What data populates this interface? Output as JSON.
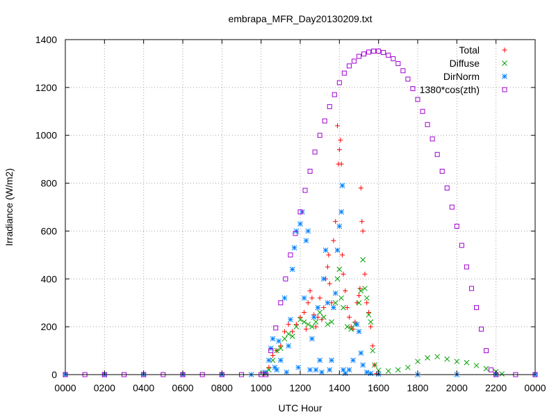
{
  "chart_data": {
    "type": "scatter",
    "title": "embrapa_MFR_Day20130209.txt",
    "xlabel": "UTC Hour",
    "ylabel": "Irradiance (W/m2)",
    "xlim": [
      0,
      24
    ],
    "ylim": [
      0,
      1400
    ],
    "x_ticks": [
      0,
      2,
      4,
      6,
      8,
      10,
      12,
      14,
      16,
      18,
      20,
      22,
      24
    ],
    "x_tick_labels": [
      "0000",
      "0200",
      "0400",
      "0600",
      "0800",
      "1000",
      "1200",
      "1400",
      "1600",
      "1800",
      "2000",
      "2200",
      "0000"
    ],
    "y_ticks": [
      0,
      200,
      400,
      600,
      800,
      1000,
      1200,
      1400
    ],
    "y_tick_labels": [
      "0",
      "200",
      "400",
      "600",
      "800",
      "1000",
      "1200",
      "1400"
    ],
    "grid": true,
    "legend_position": "top-right",
    "series": [
      {
        "name": "Total",
        "marker": "plus",
        "color": "#ff0000",
        "points": [
          [
            10.2,
            5
          ],
          [
            10.4,
            30
          ],
          [
            10.6,
            80
          ],
          [
            10.8,
            100
          ],
          [
            11.0,
            120
          ],
          [
            11.2,
            180
          ],
          [
            11.4,
            210
          ],
          [
            11.6,
            180
          ],
          [
            11.8,
            210
          ],
          [
            12.0,
            240
          ],
          [
            12.2,
            260
          ],
          [
            12.3,
            190
          ],
          [
            12.4,
            300
          ],
          [
            12.5,
            350
          ],
          [
            12.6,
            320
          ],
          [
            12.7,
            250
          ],
          [
            12.8,
            200
          ],
          [
            12.9,
            240
          ],
          [
            13.0,
            320
          ],
          [
            13.1,
            230
          ],
          [
            13.2,
            280
          ],
          [
            13.3,
            400
          ],
          [
            13.4,
            450
          ],
          [
            13.45,
            500
          ],
          [
            13.5,
            380
          ],
          [
            13.6,
            300
          ],
          [
            13.7,
            560
          ],
          [
            13.8,
            640
          ],
          [
            13.9,
            1040
          ],
          [
            13.95,
            880
          ],
          [
            14.0,
            940
          ],
          [
            14.05,
            980
          ],
          [
            14.1,
            880
          ],
          [
            14.15,
            500
          ],
          [
            14.2,
            420
          ],
          [
            14.3,
            350
          ],
          [
            14.4,
            280
          ],
          [
            14.5,
            240
          ],
          [
            14.6,
            200
          ],
          [
            14.7,
            190
          ],
          [
            14.8,
            220
          ],
          [
            14.9,
            300
          ],
          [
            15.0,
            330
          ],
          [
            15.05,
            360
          ],
          [
            15.1,
            780
          ],
          [
            15.15,
            640
          ],
          [
            15.2,
            600
          ],
          [
            15.3,
            420
          ],
          [
            15.4,
            300
          ],
          [
            15.5,
            260
          ],
          [
            15.6,
            200
          ],
          [
            15.7,
            120
          ],
          [
            15.8,
            40
          ],
          [
            15.9,
            5
          ]
        ]
      },
      {
        "name": "Diffuse",
        "marker": "cross",
        "color": "#00a000",
        "points": [
          [
            10.2,
            5
          ],
          [
            10.4,
            20
          ],
          [
            10.6,
            60
          ],
          [
            10.8,
            100
          ],
          [
            11.0,
            110
          ],
          [
            11.2,
            150
          ],
          [
            11.4,
            170
          ],
          [
            11.6,
            160
          ],
          [
            11.8,
            200
          ],
          [
            12.0,
            230
          ],
          [
            12.2,
            220
          ],
          [
            12.4,
            210
          ],
          [
            12.6,
            200
          ],
          [
            12.8,
            220
          ],
          [
            13.0,
            260
          ],
          [
            13.2,
            240
          ],
          [
            13.4,
            210
          ],
          [
            13.6,
            220
          ],
          [
            13.8,
            300
          ],
          [
            13.9,
            400
          ],
          [
            14.0,
            440
          ],
          [
            14.1,
            320
          ],
          [
            14.2,
            280
          ],
          [
            14.4,
            200
          ],
          [
            14.6,
            190
          ],
          [
            14.8,
            210
          ],
          [
            15.0,
            300
          ],
          [
            15.1,
            350
          ],
          [
            15.2,
            480
          ],
          [
            15.3,
            360
          ],
          [
            15.4,
            320
          ],
          [
            15.5,
            250
          ],
          [
            15.6,
            220
          ],
          [
            15.7,
            100
          ],
          [
            15.8,
            40
          ],
          [
            16.0,
            18
          ],
          [
            16.5,
            15
          ],
          [
            17.0,
            20
          ],
          [
            17.5,
            30
          ],
          [
            18.0,
            55
          ],
          [
            18.5,
            70
          ],
          [
            19.0,
            75
          ],
          [
            19.5,
            65
          ],
          [
            20.0,
            55
          ],
          [
            20.5,
            50
          ],
          [
            21.0,
            38
          ],
          [
            21.5,
            25
          ],
          [
            22.0,
            12
          ],
          [
            22.3,
            3
          ]
        ]
      },
      {
        "name": "DirNorm",
        "marker": "star",
        "color": "#0080ff",
        "points": [
          [
            0,
            0
          ],
          [
            2,
            0
          ],
          [
            4,
            0
          ],
          [
            6,
            0
          ],
          [
            8,
            0
          ],
          [
            9.5,
            0
          ],
          [
            10.2,
            10
          ],
          [
            10.4,
            60
          ],
          [
            10.5,
            110
          ],
          [
            10.6,
            150
          ],
          [
            10.7,
            30
          ],
          [
            10.8,
            20
          ],
          [
            10.9,
            140
          ],
          [
            11.0,
            60
          ],
          [
            11.2,
            320
          ],
          [
            11.3,
            10
          ],
          [
            11.4,
            120
          ],
          [
            11.5,
            230
          ],
          [
            11.6,
            440
          ],
          [
            11.7,
            530
          ],
          [
            11.8,
            600
          ],
          [
            11.9,
            30
          ],
          [
            12.0,
            630
          ],
          [
            12.1,
            680
          ],
          [
            12.2,
            320
          ],
          [
            12.3,
            560
          ],
          [
            12.4,
            600
          ],
          [
            12.5,
            20
          ],
          [
            12.6,
            150
          ],
          [
            12.7,
            240
          ],
          [
            12.8,
            20
          ],
          [
            12.9,
            280
          ],
          [
            13.0,
            60
          ],
          [
            13.1,
            10
          ],
          [
            13.2,
            400
          ],
          [
            13.3,
            520
          ],
          [
            13.4,
            300
          ],
          [
            13.5,
            20
          ],
          [
            13.6,
            60
          ],
          [
            13.7,
            280
          ],
          [
            13.8,
            340
          ],
          [
            13.9,
            520
          ],
          [
            14.0,
            620
          ],
          [
            14.1,
            680
          ],
          [
            14.15,
            790
          ],
          [
            14.2,
            20
          ],
          [
            14.3,
            5
          ],
          [
            14.5,
            20
          ],
          [
            14.7,
            60
          ],
          [
            14.9,
            210
          ],
          [
            15.0,
            180
          ],
          [
            15.1,
            90
          ],
          [
            15.2,
            40
          ],
          [
            15.4,
            10
          ],
          [
            15.6,
            5
          ],
          [
            16.0,
            2
          ],
          [
            18.0,
            0
          ],
          [
            20.0,
            0
          ],
          [
            22.0,
            0
          ],
          [
            24.0,
            0
          ]
        ]
      },
      {
        "name": "1380*cos(zth)",
        "marker": "square",
        "color": "#a000d0",
        "points": [
          [
            0,
            0
          ],
          [
            1,
            0
          ],
          [
            2,
            0
          ],
          [
            3,
            0
          ],
          [
            4,
            0
          ],
          [
            5,
            0
          ],
          [
            6,
            0
          ],
          [
            7,
            0
          ],
          [
            8,
            0
          ],
          [
            9,
            0
          ],
          [
            10,
            0
          ],
          [
            10.25,
            0
          ],
          [
            10.5,
            100
          ],
          [
            10.75,
            195
          ],
          [
            11.0,
            300
          ],
          [
            11.25,
            400
          ],
          [
            11.5,
            500
          ],
          [
            11.75,
            590
          ],
          [
            12.0,
            680
          ],
          [
            12.25,
            770
          ],
          [
            12.5,
            850
          ],
          [
            12.75,
            930
          ],
          [
            13.0,
            1000
          ],
          [
            13.25,
            1060
          ],
          [
            13.5,
            1120
          ],
          [
            13.75,
            1170
          ],
          [
            14.0,
            1220
          ],
          [
            14.25,
            1260
          ],
          [
            14.5,
            1290
          ],
          [
            14.75,
            1310
          ],
          [
            15.0,
            1330
          ],
          [
            15.25,
            1340
          ],
          [
            15.5,
            1348
          ],
          [
            15.75,
            1352
          ],
          [
            16.0,
            1352
          ],
          [
            16.25,
            1346
          ],
          [
            16.5,
            1335
          ],
          [
            16.75,
            1320
          ],
          [
            17.0,
            1300
          ],
          [
            17.25,
            1270
          ],
          [
            17.5,
            1235
          ],
          [
            17.75,
            1195
          ],
          [
            18.0,
            1150
          ],
          [
            18.25,
            1100
          ],
          [
            18.5,
            1045
          ],
          [
            18.75,
            985
          ],
          [
            19.0,
            920
          ],
          [
            19.25,
            850
          ],
          [
            19.5,
            780
          ],
          [
            19.75,
            700
          ],
          [
            20.0,
            620
          ],
          [
            20.25,
            540
          ],
          [
            20.5,
            450
          ],
          [
            20.75,
            360
          ],
          [
            21.0,
            280
          ],
          [
            21.25,
            190
          ],
          [
            21.5,
            100
          ],
          [
            21.75,
            20
          ],
          [
            22.0,
            0
          ],
          [
            23.0,
            0
          ],
          [
            24.0,
            0
          ]
        ]
      }
    ]
  }
}
